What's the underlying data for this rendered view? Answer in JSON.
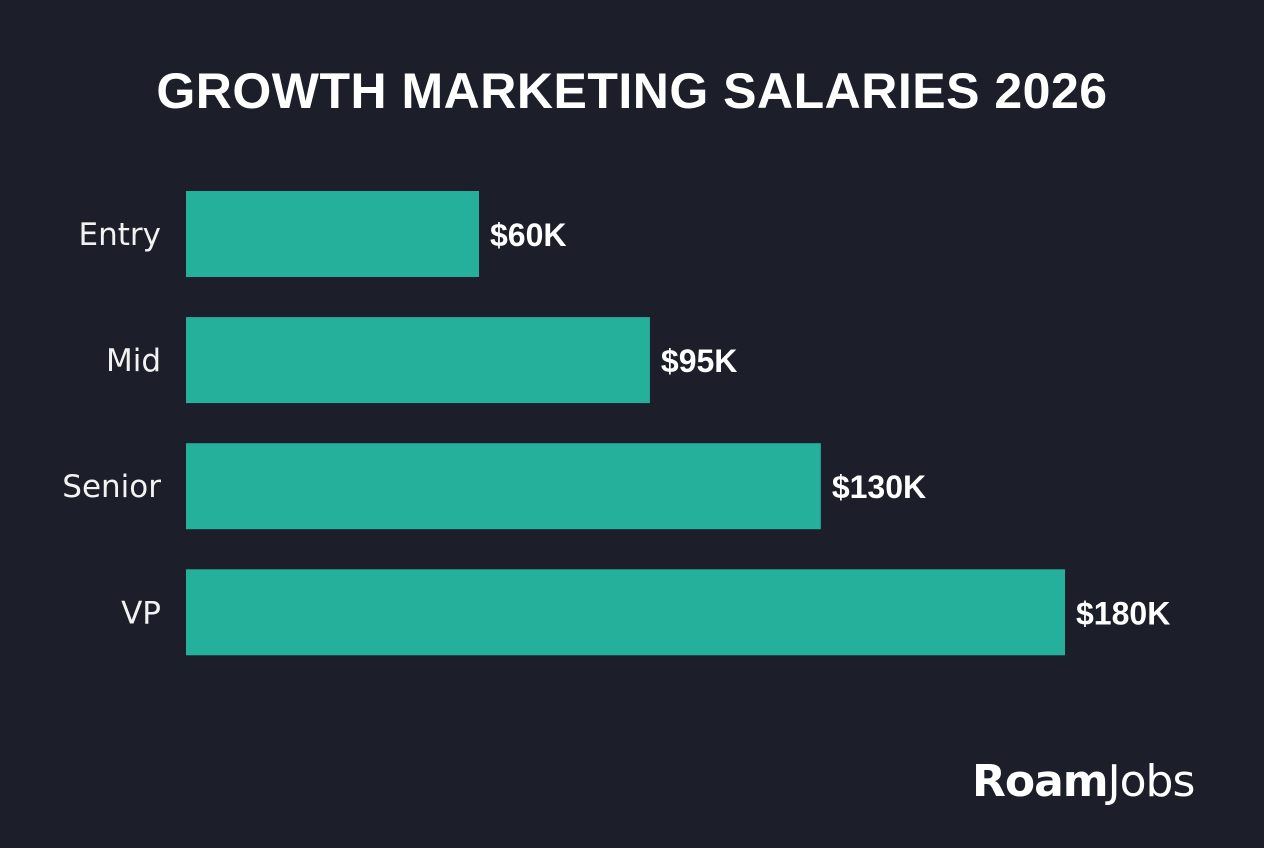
{
  "colors": {
    "background": "#1c1f2a",
    "bar": "#24b09b",
    "text": "#ffffff"
  },
  "logo": {
    "bold": "Roam",
    "light": "Jobs"
  },
  "chart_data": {
    "type": "bar",
    "orientation": "horizontal",
    "title": "GROWTH MARKETING SALARIES 2026",
    "categories": [
      "Entry",
      "Mid",
      "Senior",
      "VP"
    ],
    "values": [
      60,
      95,
      130,
      180
    ],
    "data_labels": [
      "$60K",
      "$95K",
      "$130K",
      "$180K"
    ],
    "unit": "thousand USD",
    "xlim": [
      0,
      180
    ],
    "grid": false,
    "legend": "none"
  }
}
